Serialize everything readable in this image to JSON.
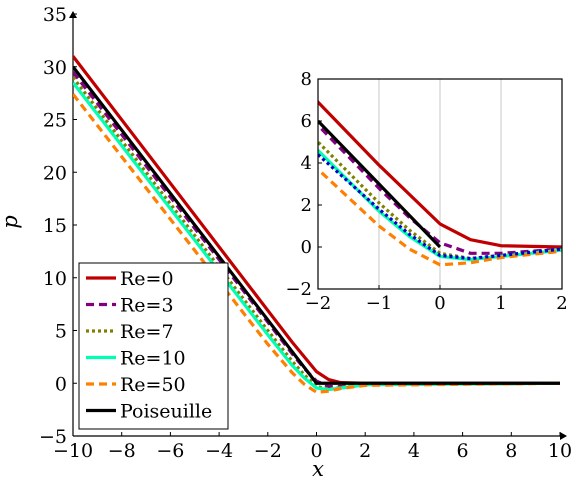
{
  "chart_data": [
    {
      "type": "line",
      "title": "",
      "xlabel": "x",
      "ylabel": "p",
      "xlim": [
        -10,
        10
      ],
      "ylim": [
        -5,
        35
      ],
      "xticks": [
        "−10",
        "−8",
        "−6",
        "−4",
        "−2",
        "0",
        "2",
        "4",
        "6",
        "8",
        "10"
      ],
      "yticks": [
        "−5",
        "0",
        "5",
        "10",
        "15",
        "20",
        "25",
        "30",
        "35"
      ],
      "grid": false,
      "legend_position": "bottom-left",
      "series": [
        {
          "name": "Re=0",
          "color": "#c00000",
          "style": "solid",
          "x": [
            -10,
            -2,
            -1,
            -0.5,
            0,
            0.5,
            1,
            2,
            10
          ],
          "y": [
            31.0,
            6.9,
            3.9,
            2.5,
            1.1,
            0.35,
            0.06,
            0.0,
            0.0
          ]
        },
        {
          "name": "Re=3",
          "color": "#800080",
          "style": "dashed",
          "x": [
            -10,
            -2,
            -1,
            -0.5,
            0,
            0.5,
            1,
            2,
            10
          ],
          "y": [
            29.5,
            5.8,
            2.8,
            1.4,
            0.2,
            -0.3,
            -0.3,
            -0.1,
            0.0
          ]
        },
        {
          "name": "Re=7",
          "color": "#808000",
          "style": "dotted",
          "x": [
            -10,
            -2,
            -1,
            -0.5,
            0,
            0.5,
            1,
            2,
            10
          ],
          "y": [
            29.0,
            5.0,
            2.1,
            0.8,
            -0.3,
            -0.55,
            -0.4,
            -0.1,
            0.0
          ]
        },
        {
          "name": "Re=10",
          "color": "#00ffb0",
          "style": "solid",
          "x": [
            -10,
            -2,
            -1,
            -0.5,
            0,
            0.5,
            1,
            2,
            10
          ],
          "y": [
            28.5,
            4.6,
            1.7,
            0.5,
            -0.45,
            -0.6,
            -0.45,
            -0.15,
            0.0
          ]
        },
        {
          "name": "Re=50",
          "color": "#ff8000",
          "style": "dashed",
          "x": [
            -10,
            -2,
            -1,
            -0.5,
            0,
            0.5,
            1,
            2,
            10
          ],
          "y": [
            27.4,
            3.7,
            1.0,
            -0.1,
            -0.85,
            -0.75,
            -0.5,
            -0.2,
            0.0
          ]
        },
        {
          "name": "Poiseuille",
          "color": "#000000",
          "style": "solid",
          "x": [
            -10,
            0,
            10
          ],
          "y": [
            30.0,
            0.0,
            0.0
          ]
        }
      ]
    },
    {
      "type": "line",
      "title": "",
      "xlabel": "",
      "ylabel": "",
      "xlim": [
        -2,
        2
      ],
      "ylim": [
        -2,
        8
      ],
      "xticks": [
        "−2",
        "−1",
        "0",
        "1",
        "2"
      ],
      "yticks": [
        "−2",
        "0",
        "2",
        "4",
        "6",
        "8"
      ],
      "grid": true,
      "extra_series": [
        {
          "color": "#0000cc",
          "style": "dotted",
          "x": [
            -2,
            -1,
            -0.5,
            0,
            0.5,
            1,
            2
          ],
          "y": [
            4.4,
            1.8,
            0.6,
            -0.4,
            -0.55,
            -0.4,
            -0.1
          ]
        }
      ],
      "note": "inset is a zoom of the main plot; it shares the six legend series"
    }
  ]
}
